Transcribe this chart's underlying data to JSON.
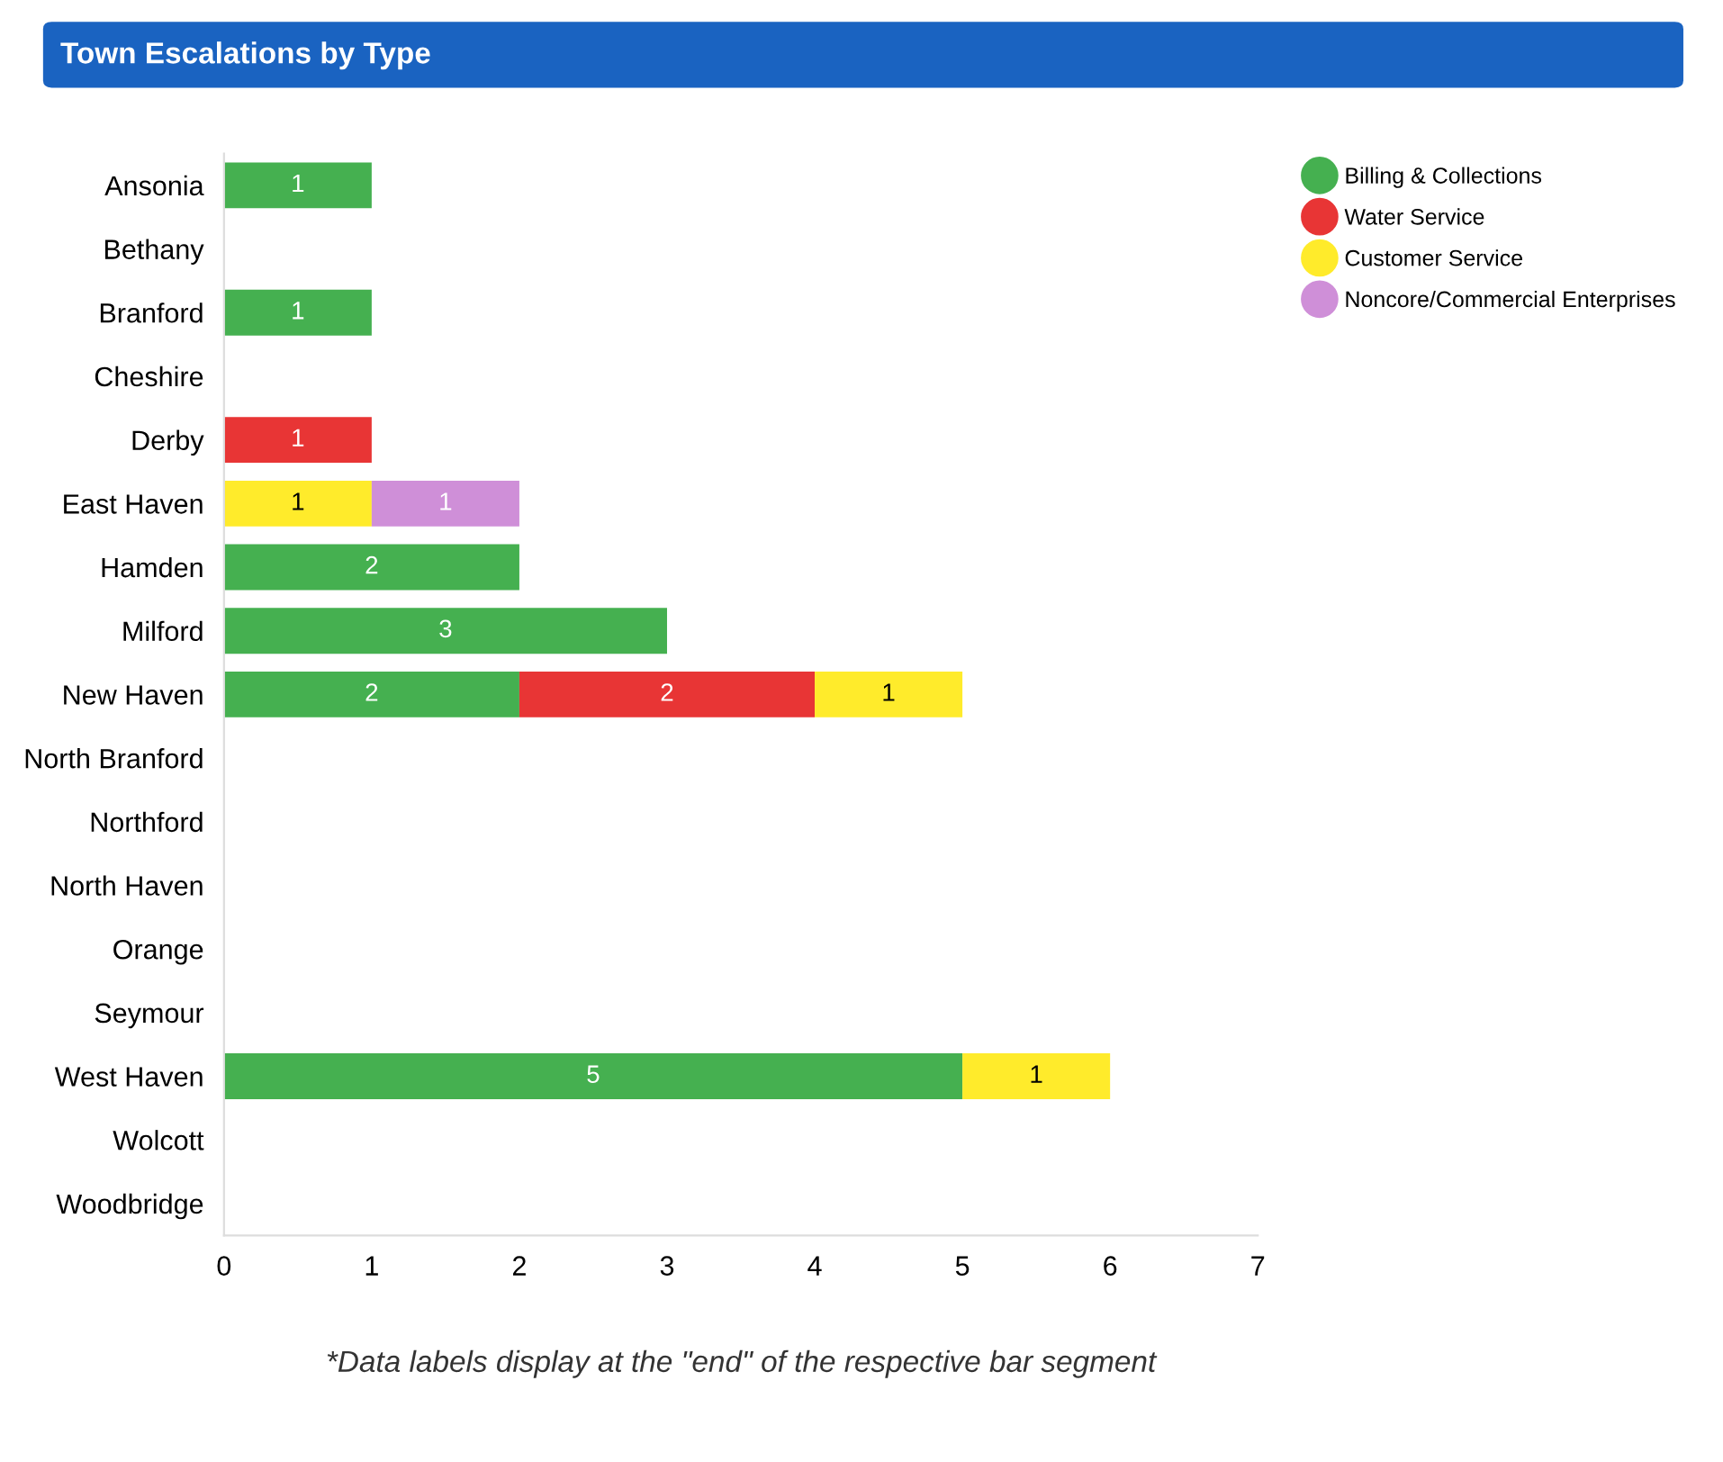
{
  "chart_data": {
    "type": "bar",
    "orientation": "horizontal",
    "stacked": true,
    "title": "Town Escalations by Type",
    "categories": [
      "Ansonia",
      "Bethany",
      "Branford",
      "Cheshire",
      "Derby",
      "East Haven",
      "Hamden",
      "Milford",
      "New Haven",
      "North Branford",
      "Northford",
      "North Haven",
      "Orange",
      "Seymour",
      "West Haven",
      "Wolcott",
      "Woodbridge"
    ],
    "series": [
      {
        "name": "Billing & Collections",
        "color": "#45b050",
        "values": [
          1,
          null,
          1,
          null,
          null,
          null,
          2,
          3,
          2,
          null,
          null,
          null,
          null,
          null,
          5,
          null,
          null
        ]
      },
      {
        "name": "Water Service",
        "color": "#e83535",
        "values": [
          null,
          null,
          null,
          null,
          1,
          null,
          null,
          null,
          2,
          null,
          null,
          null,
          null,
          null,
          null,
          null,
          null
        ]
      },
      {
        "name": "Customer Service",
        "color": "#ffeb2b",
        "values": [
          null,
          null,
          null,
          null,
          null,
          1,
          null,
          null,
          1,
          null,
          null,
          null,
          null,
          null,
          1,
          null,
          null
        ]
      },
      {
        "name": "Noncore/Commercial Enterprises",
        "color": "#cf8fd8",
        "values": [
          null,
          null,
          null,
          null,
          null,
          1,
          null,
          null,
          null,
          null,
          null,
          null,
          null,
          null,
          null,
          null,
          null
        ]
      }
    ],
    "xlim": [
      0,
      7
    ],
    "xticks": [
      0,
      1,
      2,
      3,
      4,
      5,
      6,
      7
    ],
    "data_labels": true,
    "legend": "top right",
    "grid": false,
    "annotations": [
      "*Data labels display at the \"end\" of the respective bar segment"
    ]
  }
}
